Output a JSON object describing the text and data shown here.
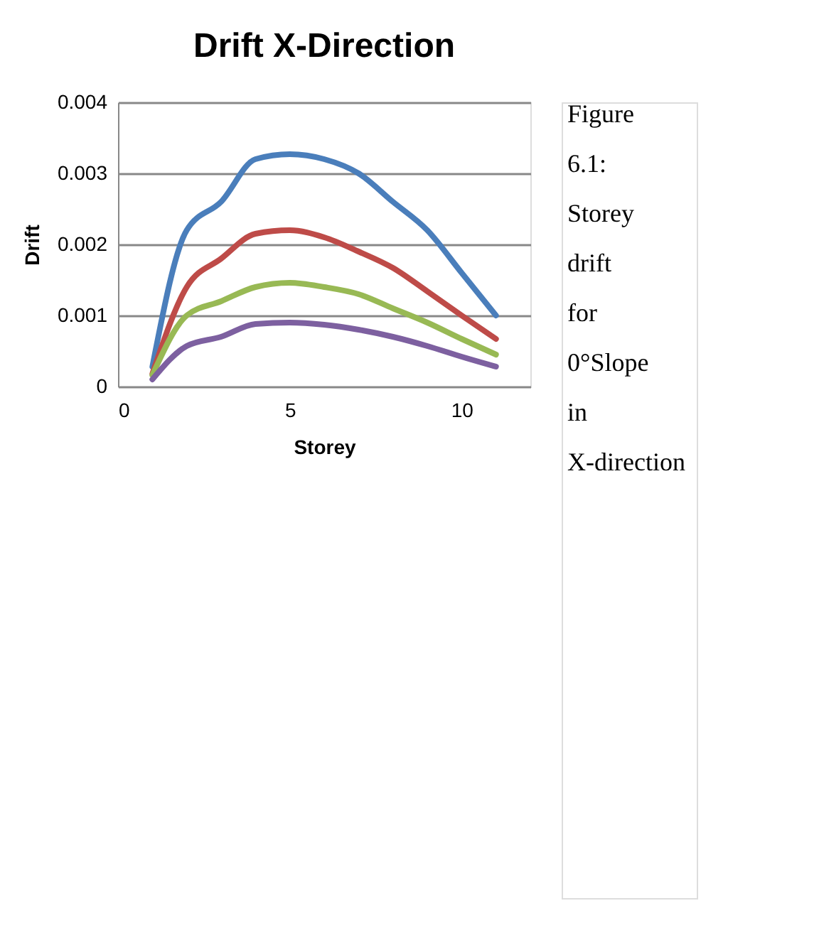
{
  "chart_data": {
    "type": "line",
    "title": "Drift X-Direction",
    "xlabel": "Storey",
    "ylabel": "Drift",
    "x": [
      1,
      2,
      3,
      4,
      5,
      6,
      7,
      8,
      9,
      10,
      11
    ],
    "series": [
      {
        "color": "#4a7ebb",
        "values": [
          0.00028,
          0.0022,
          0.0026,
          0.0032,
          0.00327,
          0.0032,
          0.003,
          0.0026,
          0.0022,
          0.0016,
          0.001
        ]
      },
      {
        "color": "#be4b48",
        "values": [
          0.00018,
          0.0014,
          0.0018,
          0.00215,
          0.0022,
          0.0021,
          0.0019,
          0.00167,
          0.00134,
          0.001,
          0.00067
        ]
      },
      {
        "color": "#98b954",
        "values": [
          0.00016,
          0.001,
          0.0012,
          0.0014,
          0.00146,
          0.0014,
          0.0013,
          0.0011,
          0.0009,
          0.00067,
          0.00045
        ]
      },
      {
        "color": "#7d60a0",
        "values": [
          0.0001,
          0.00057,
          0.0007,
          0.00088,
          0.0009,
          0.00087,
          0.0008,
          0.0007,
          0.00057,
          0.00042,
          0.00028
        ]
      }
    ],
    "xlim": [
      0,
      12
    ],
    "xticks": [
      0,
      5,
      10
    ],
    "ylim": [
      0,
      0.004
    ],
    "yticks": [
      0,
      0.001,
      0.002,
      0.003,
      0.004
    ],
    "grid": "y",
    "legend": false,
    "marker": "none",
    "line_style": "solid",
    "annotations": [
      "Figure 6.1: Storey drift for 0°Slope in X-direction"
    ]
  }
}
